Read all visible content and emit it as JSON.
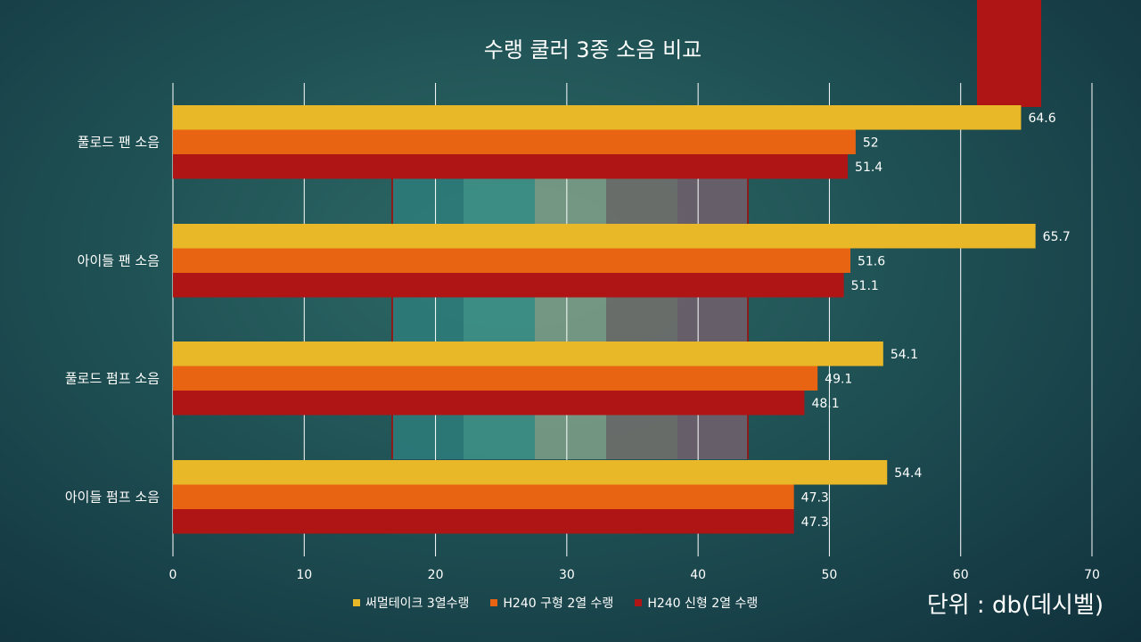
{
  "chart_data": {
    "type": "bar",
    "orientation": "horizontal",
    "title": "수랭 쿨러 3종 소음 비교",
    "unit_note": "단위 : db(데시벨)",
    "categories": [
      "풀로드 팬 소음",
      "아이들 팬 소음",
      "풀로드 펌프 소음",
      "아이들 펌프 소음"
    ],
    "series": [
      {
        "name": "써멀테이크 3열수랭",
        "color": "#e8b828",
        "values": [
          64.6,
          65.7,
          54.1,
          54.4
        ]
      },
      {
        "name": "H240 구형 2열 수랭",
        "color": "#e86412",
        "values": [
          52,
          51.6,
          49.1,
          47.3
        ]
      },
      {
        "name": "H240 신형 2열 수랭",
        "color": "#b01515",
        "values": [
          51.4,
          51.1,
          48.1,
          47.3
        ]
      }
    ],
    "xlim": [
      0,
      70
    ],
    "x_ticks": [
      0,
      10,
      20,
      30,
      40,
      50,
      60,
      70
    ],
    "grid": true,
    "legend_position": "bottom"
  }
}
